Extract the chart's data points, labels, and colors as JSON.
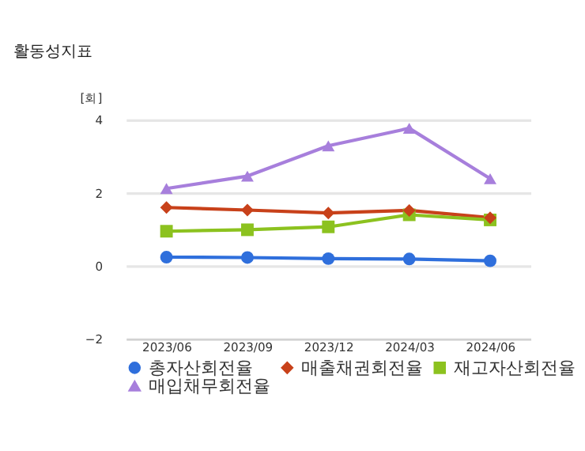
{
  "chart_data": {
    "type": "line",
    "title": "활동성지표",
    "ylabel": "[회]",
    "categories": [
      "2023/06",
      "2023/09",
      "2023/12",
      "2024/03",
      "2024/06"
    ],
    "series": [
      {
        "name": "총자산회전율",
        "color": "#2f6fdc",
        "marker": "circle",
        "values": [
          0.24,
          0.23,
          0.2,
          0.19,
          0.14
        ]
      },
      {
        "name": "매출채권회전율",
        "color": "#c8411a",
        "marker": "diamond",
        "values": [
          1.6,
          1.53,
          1.45,
          1.52,
          1.32
        ]
      },
      {
        "name": "재고자산회전율",
        "color": "#8cc21f",
        "marker": "square",
        "values": [
          0.95,
          0.99,
          1.07,
          1.4,
          1.26
        ]
      },
      {
        "name": "매입채무회전율",
        "color": "#a77fdc",
        "marker": "triangle",
        "values": [
          2.12,
          2.46,
          3.29,
          3.77,
          2.39
        ]
      }
    ],
    "ylim": [
      -2,
      4
    ],
    "yticks": [
      -2,
      0,
      2,
      4
    ],
    "grid": "y",
    "legend": "bottom"
  }
}
